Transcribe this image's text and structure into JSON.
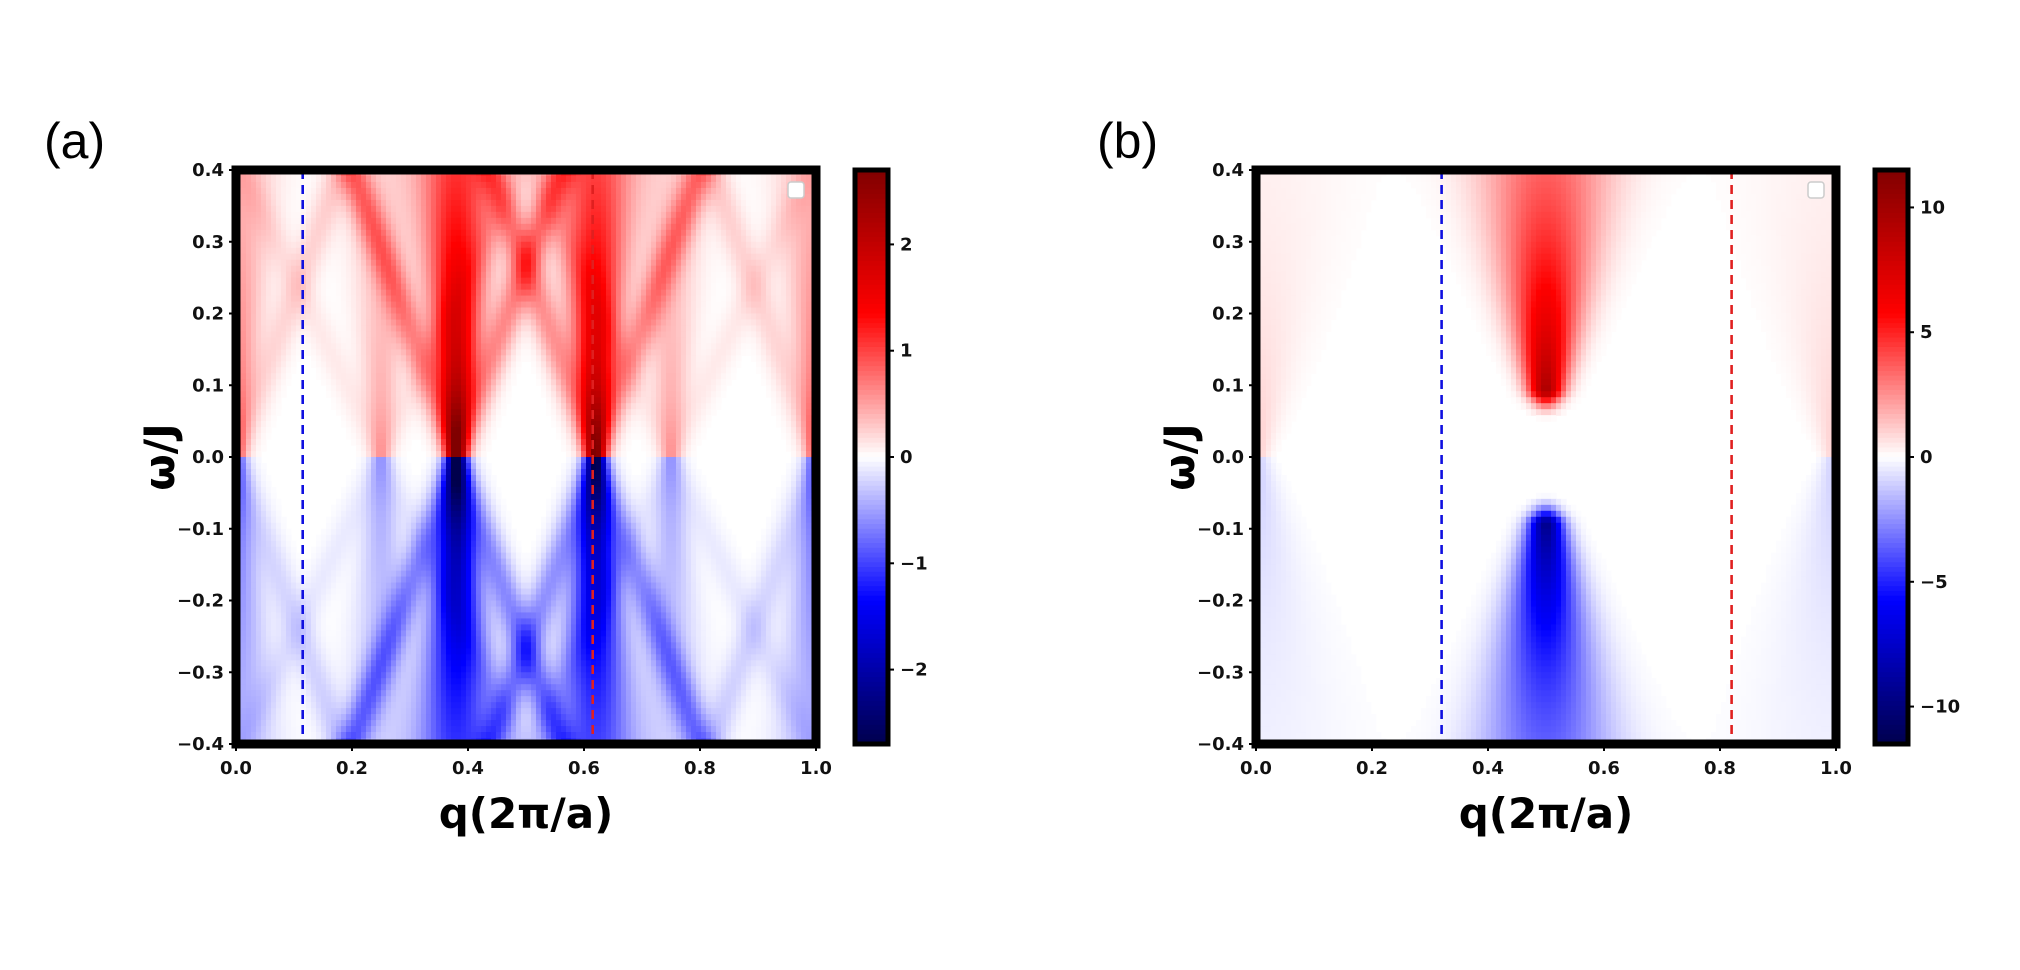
{
  "figure": {
    "panels": [
      "(a)",
      "(b)"
    ]
  },
  "chart_data": [
    {
      "type": "heatmap",
      "panel": "(a)",
      "xlabel": "q(2π/a)",
      "ylabel": "ω/J",
      "xlim": [
        0.0,
        1.0
      ],
      "ylim": [
        -0.4,
        0.4
      ],
      "xticks": [
        "0.0",
        "0.2",
        "0.4",
        "0.6",
        "0.8",
        "1.0"
      ],
      "yticks": [
        "-0.4",
        "-0.3",
        "-0.2",
        "-0.1",
        "0.0",
        "0.1",
        "0.2",
        "0.3",
        "0.4"
      ],
      "colorbar": {
        "range": [
          -2.7,
          2.7
        ],
        "ticks": [
          "-2",
          "-1",
          "0",
          "1",
          "2"
        ],
        "tick_values": [
          -2,
          -1,
          0,
          1,
          2
        ],
        "colormap": "seismic"
      },
      "features": [
        {
          "type": "cone",
          "x": 0.38,
          "apex_w": 0.0,
          "spread": 0.45,
          "amp": 2.6
        },
        {
          "type": "cone",
          "x": 0.62,
          "apex_w": 0.0,
          "spread": 0.45,
          "amp": 2.4
        },
        {
          "type": "cone",
          "x": 0.0,
          "apex_w": 0.0,
          "spread": 0.45,
          "amp": 0.9
        },
        {
          "type": "cone",
          "x": 1.0,
          "apex_w": 0.0,
          "spread": 0.45,
          "amp": 0.9
        },
        {
          "type": "cone",
          "x": 0.25,
          "apex_w": 0.0,
          "spread": 0.6,
          "amp": 0.5
        },
        {
          "type": "cone",
          "x": 0.75,
          "apex_w": 0.0,
          "spread": 0.6,
          "amp": 0.5
        }
      ],
      "vlines": [
        {
          "x": 0.115,
          "color": "#1010e0"
        },
        {
          "x": 0.615,
          "color": "#e02020"
        }
      ]
    },
    {
      "type": "heatmap",
      "panel": "(b)",
      "xlabel": "q(2π/a)",
      "ylabel": "ω/J",
      "xlim": [
        0.0,
        1.0
      ],
      "ylim": [
        -0.4,
        0.4
      ],
      "xticks": [
        "0.0",
        "0.2",
        "0.4",
        "0.6",
        "0.8",
        "1.0"
      ],
      "yticks": [
        "-0.4",
        "-0.3",
        "-0.2",
        "-0.1",
        "0.0",
        "0.1",
        "0.2",
        "0.3",
        "0.4"
      ],
      "colorbar": {
        "range": [
          -11.5,
          11.5
        ],
        "ticks": [
          "-10",
          "-5",
          "0",
          "5",
          "10"
        ],
        "tick_values": [
          -10,
          -5,
          0,
          5,
          10
        ],
        "colormap": "seismic"
      },
      "features": [
        {
          "type": "gapped-cone",
          "x": 0.5,
          "gap_w": 0.09,
          "spread": 0.35,
          "amp": 11.0
        },
        {
          "type": "gapped-cone",
          "x": 0.0,
          "gap_w": 0.0,
          "spread": 0.45,
          "amp": 1.2
        },
        {
          "type": "gapped-cone",
          "x": 1.0,
          "gap_w": 0.0,
          "spread": 0.45,
          "amp": 1.2
        }
      ],
      "vlines": [
        {
          "x": 0.32,
          "color": "#1010e0"
        },
        {
          "x": 0.82,
          "color": "#e02020"
        }
      ]
    }
  ]
}
